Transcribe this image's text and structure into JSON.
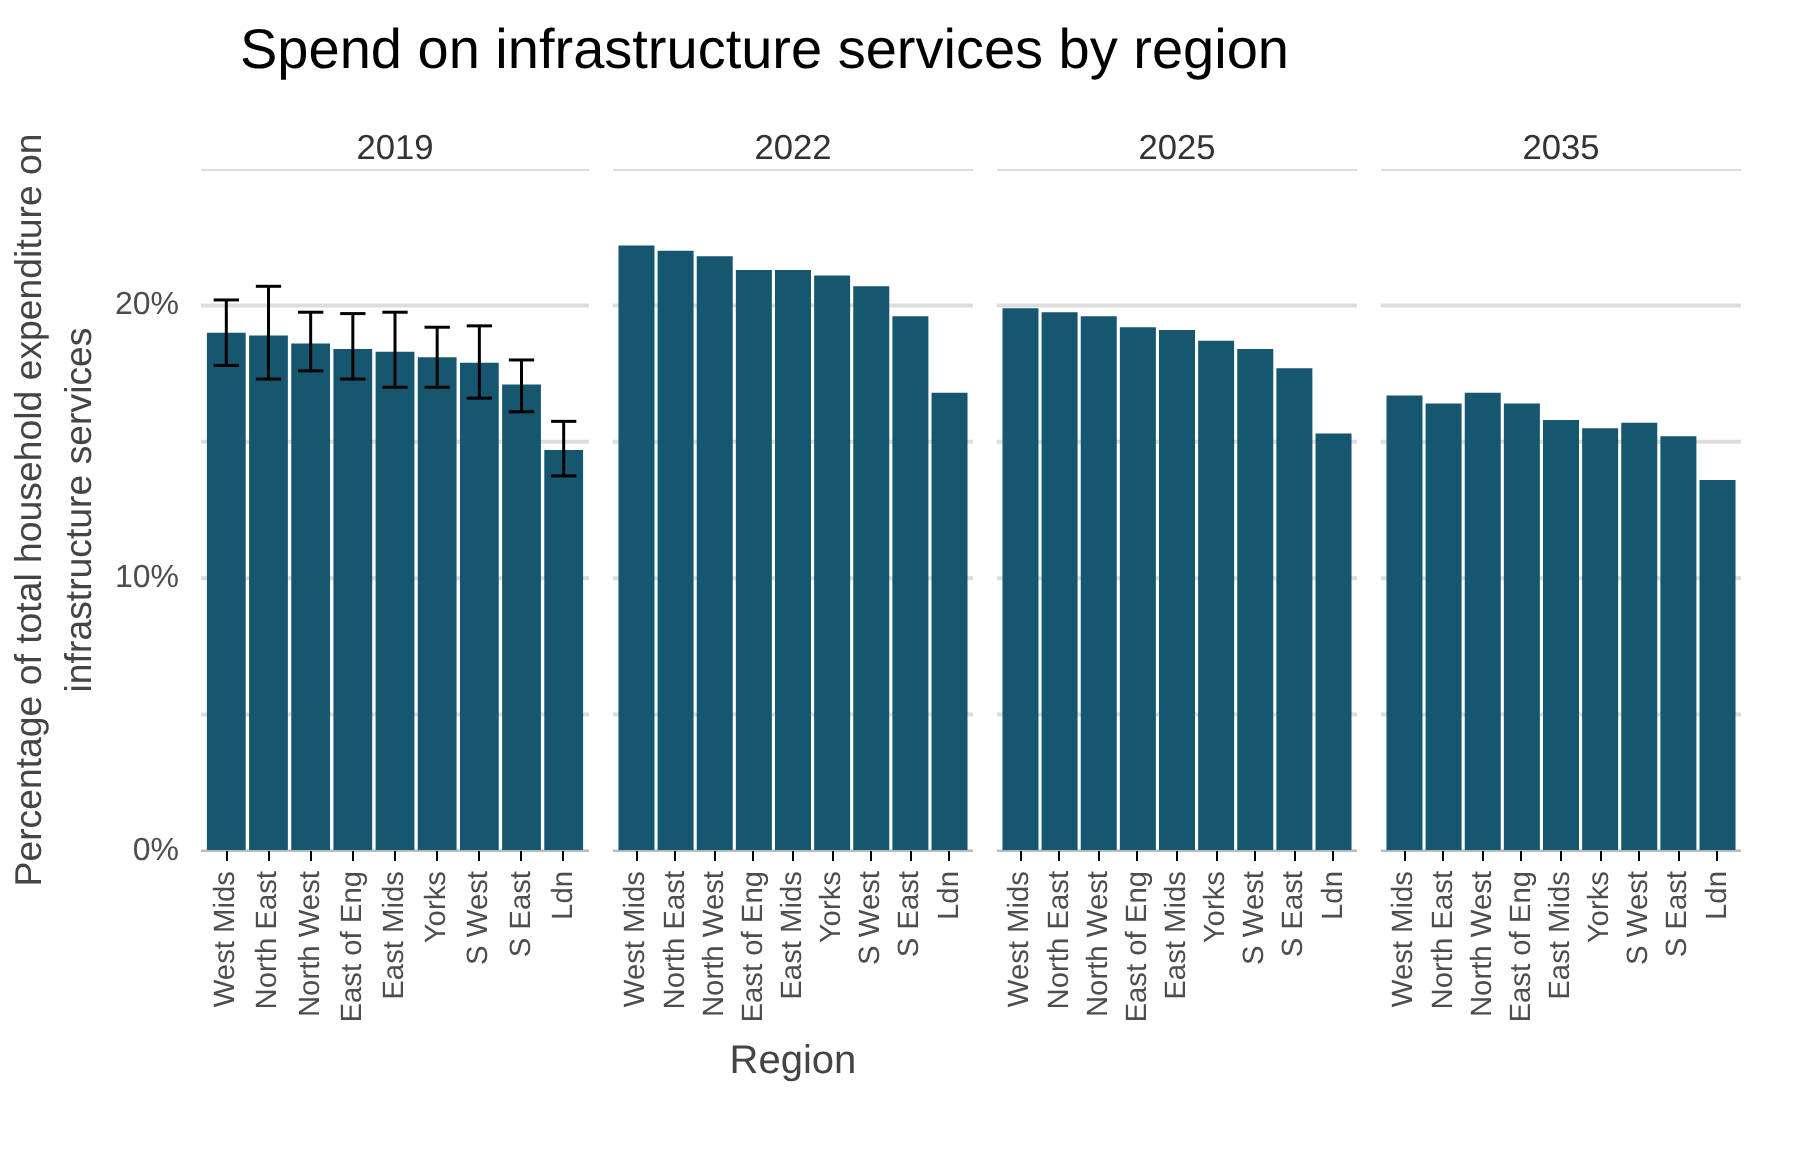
{
  "chart_data": [
    {
      "type": "bar",
      "title": "Spend on infrastructure services by region",
      "subtitle": "2019",
      "ylabel": "Percentage of total household expenditure on infrastructure services",
      "categories": [
        "West Mids",
        "North East",
        "North West",
        "East of Eng",
        "East Mids",
        "Yorks",
        "S West",
        "S East",
        "Ldn"
      ],
      "color": "#17566f",
      "values": [
        19.0,
        18.9,
        18.6,
        18.4,
        18.3,
        18.1,
        17.9,
        17.1,
        14.7
      ],
      "errors": [
        [
          17.8,
          20.2
        ],
        [
          17.3,
          20.7
        ],
        [
          17.6,
          19.75
        ],
        [
          17.3,
          19.7
        ],
        [
          17.0,
          19.75
        ],
        [
          17.0,
          19.2
        ],
        [
          16.6,
          19.25
        ],
        [
          16.1,
          18.0
        ],
        [
          13.75,
          15.75
        ]
      ],
      "ylim": [
        0,
        25
      ],
      "yticks": [
        {
          "value": 0,
          "label": "0%"
        },
        {
          "value": 5,
          "label": null
        },
        {
          "value": 10,
          "label": "10%"
        },
        {
          "value": 15,
          "label": null
        },
        {
          "value": 20,
          "label": "20%"
        },
        {
          "value": 25,
          "label": null
        }
      ],
      "grid": "y"
    },
    {
      "type": "bar",
      "subtitle": "2022",
      "xlabel": "Region",
      "categories": [
        "West Mids",
        "North East",
        "North West",
        "East of Eng",
        "East Mids",
        "Yorks",
        "S West",
        "S East",
        "Ldn"
      ],
      "color": "#17566f",
      "values": [
        22.2,
        22.0,
        21.8,
        21.3,
        21.3,
        21.1,
        20.7,
        19.6,
        16.8
      ],
      "ylim": [
        0,
        25
      ],
      "yticks": [
        {
          "value": 0,
          "label": null
        },
        {
          "value": 5,
          "label": null
        },
        {
          "value": 10,
          "label": null
        },
        {
          "value": 15,
          "label": null
        },
        {
          "value": 20,
          "label": null
        },
        {
          "value": 25,
          "label": null
        }
      ],
      "grid": "y",
      "tick_labels": "x"
    },
    {
      "type": "bar",
      "subtitle": "2025",
      "categories": [
        "West Mids",
        "North East",
        "North West",
        "East of Eng",
        "East Mids",
        "Yorks",
        "S West",
        "S East",
        "Ldn"
      ],
      "color": "#17566f",
      "values": [
        19.9,
        19.75,
        19.6,
        19.2,
        19.1,
        18.7,
        18.4,
        17.7,
        15.3
      ],
      "ylim": [
        0,
        25
      ],
      "yticks": [
        {
          "value": 0,
          "label": null
        },
        {
          "value": 5,
          "label": null
        },
        {
          "value": 10,
          "label": null
        },
        {
          "value": 15,
          "label": null
        },
        {
          "value": 20,
          "label": null
        },
        {
          "value": 25,
          "label": null
        }
      ],
      "grid": "y",
      "tick_labels": "x"
    },
    {
      "type": "bar",
      "subtitle": "2035",
      "categories": [
        "West Mids",
        "North East",
        "North West",
        "East of Eng",
        "East Mids",
        "Yorks",
        "S West",
        "S East",
        "Ldn"
      ],
      "color": "#17566f",
      "values": [
        16.7,
        16.4,
        16.8,
        16.4,
        15.8,
        15.5,
        15.7,
        15.2,
        13.6
      ],
      "ylim": [
        0,
        25
      ],
      "yticks": [
        {
          "value": 0,
          "label": null
        },
        {
          "value": 5,
          "label": null
        },
        {
          "value": 10,
          "label": null
        },
        {
          "value": 15,
          "label": null
        },
        {
          "value": 20,
          "label": null
        },
        {
          "value": 25,
          "label": null
        }
      ],
      "grid": "y",
      "tick_labels": "x"
    }
  ]
}
